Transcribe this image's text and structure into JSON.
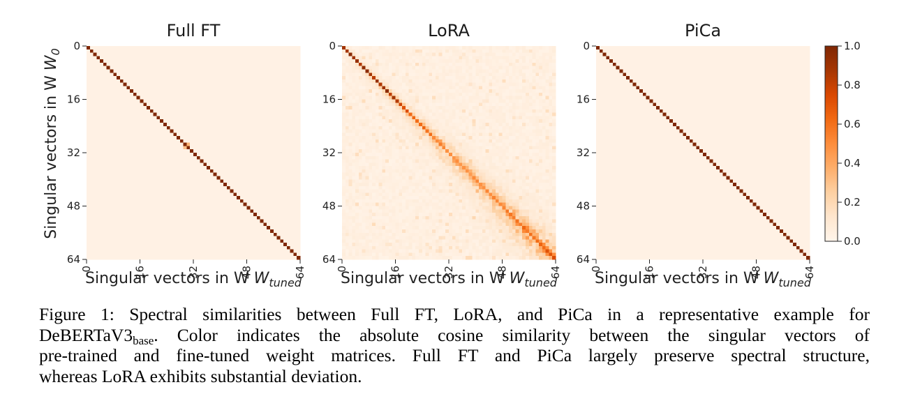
{
  "chart_data": [
    {
      "type": "heatmap",
      "title": "Full FT",
      "xlabel": "Singular vectors in W",
      "xlabel_sub": "tuned",
      "ylabel": "Singular vectors in W",
      "ylabel_sub": "0",
      "size": 64,
      "xticks": [
        0,
        16,
        32,
        48,
        64
      ],
      "yticks": [
        0,
        16,
        32,
        48,
        64
      ],
      "diagonal": 1.0,
      "off_diagonal": [
        [
          29,
          30,
          0.35
        ],
        [
          30,
          29,
          0.3
        ]
      ]
    },
    {
      "type": "heatmap",
      "title": "LoRA",
      "xlabel": "Singular vectors in W",
      "xlabel_sub": "tuned",
      "size": 64,
      "xticks": [
        0,
        16,
        32,
        48,
        64
      ],
      "yticks": [
        0,
        16,
        32,
        48,
        64
      ],
      "diagonal_profile": [
        [
          0,
          1.0
        ],
        [
          14,
          0.95
        ],
        [
          20,
          0.7
        ],
        [
          34,
          0.5
        ],
        [
          50,
          0.6
        ],
        [
          63,
          0.75
        ]
      ],
      "off_diagonal_note": "substantial off-diagonal similarity, widening band toward higher indices"
    },
    {
      "type": "heatmap",
      "title": "PiCa",
      "xlabel": "Singular vectors in W",
      "xlabel_sub": "tuned",
      "size": 64,
      "xticks": [
        0,
        16,
        32,
        48,
        64
      ],
      "yticks": [
        0,
        16,
        32,
        48,
        64
      ],
      "diagonal": 1.0
    }
  ],
  "colorbar": {
    "range": [
      0.0,
      1.0
    ],
    "ticks": [
      "0.0",
      "0.2",
      "0.4",
      "0.6",
      "0.8",
      "1.0"
    ],
    "colormap": [
      "#fff5eb",
      "#fee6ce",
      "#fdd0a2",
      "#fdae6b",
      "#fd8d3c",
      "#f16913",
      "#d94801",
      "#a63603",
      "#7f2704"
    ]
  },
  "caption": {
    "line1": "Figure 1: Spectral similarities between Full FT, LoRA, and PiCa in a representative example for",
    "line2_pre": "DeBERTaV3",
    "line2_sub": "base",
    "line2_post": ". Color indicates the absolute cosine similarity between the singular vectors of",
    "line3": "pre-trained and fine-tuned weight matrices. Full FT and PiCa largely preserve spectral structure,",
    "line4": "whereas LoRA exhibits substantial deviation."
  }
}
